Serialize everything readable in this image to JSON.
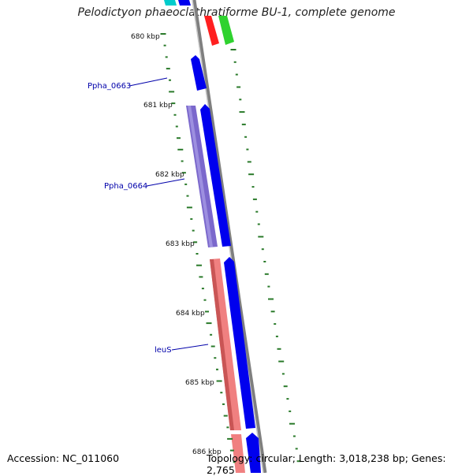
{
  "title": "Pelodictyon phaeoclathratiforme BU-1, complete genome",
  "footer": {
    "accession": "Accession: NC_011060",
    "topology": "Topology: circular; Length: 3,018,238 bp; Genes: 2,765"
  },
  "ruler": {
    "ticks": [
      "680 kbp",
      "681 kbp",
      "682 kbp",
      "683 kbp",
      "684 kbp",
      "685 kbp",
      "686 kbp"
    ]
  },
  "gene_labels": [
    "Ppha_0663",
    "Ppha_0664",
    "leuS"
  ],
  "colors": {
    "backbone": "#808080",
    "cds": "#0000ee",
    "cds_dark": "#1c1ca8",
    "trna_rrna": "#ff0000",
    "green": "#22cc22",
    "purple": "#7b68cc",
    "salmon": "#f08080",
    "cyan": "#00cccc",
    "gc_skew": "#2a7a2a",
    "label": "#0000aa"
  }
}
